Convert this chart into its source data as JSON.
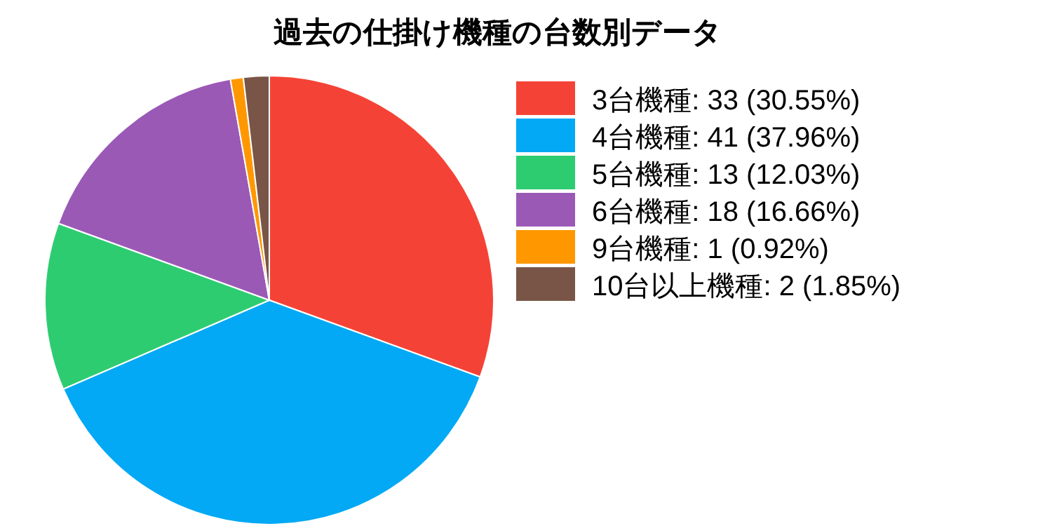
{
  "chart_data": {
    "type": "pie",
    "title": "過去の仕掛け機種の台数別データ",
    "categories": [
      "3台機種",
      "4台機種",
      "5台機種",
      "6台機種",
      "9台機種",
      "10台以上機種"
    ],
    "values": [
      33,
      41,
      13,
      18,
      1,
      2
    ],
    "value_labels": [
      "33 (30.55%)",
      "41 (37.96%)",
      "13 (12.03%)",
      "18 (16.66%)",
      "1 (0.92%)",
      "2 (1.85%)"
    ],
    "colors": [
      "#f44336",
      "#03a9f4",
      "#2ecc71",
      "#9b59b6",
      "#ff9800",
      "#795548"
    ],
    "legend": "right"
  }
}
